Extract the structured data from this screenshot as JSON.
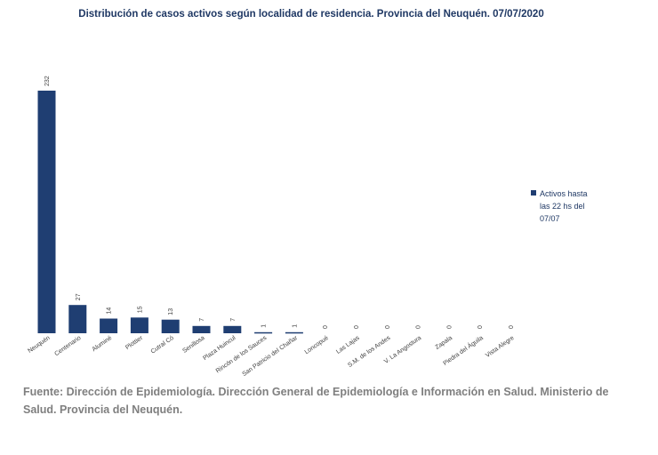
{
  "chart_data": {
    "type": "bar",
    "title": "Distribución de casos activos según localidad de residencia. Provincia del Neuquén. 07/07/2020",
    "categories": [
      "Neuquén",
      "Centenario",
      "Aluminé",
      "Plottier",
      "Cutral Có",
      "Senillosa",
      "Plaza Huincul",
      "Rincón de los Sauces",
      "San Patricio del Chañar",
      "Loncopué",
      "Las Lajas",
      "S.M. de los Andes",
      "V. La Angostura",
      "Zapala",
      "Piedra del Águila",
      "Vista Alegre"
    ],
    "series": [
      {
        "name": "Activos hasta las 22 hs del 07/07",
        "values": [
          232,
          27,
          14,
          15,
          13,
          7,
          7,
          1,
          1,
          0,
          0,
          0,
          0,
          0,
          0,
          0
        ]
      }
    ],
    "xlabel": "",
    "ylabel": "",
    "ylim": [
      0,
      232
    ],
    "grid": false,
    "legend_position": "right",
    "bar_color": "#1f3e72"
  },
  "legend": {
    "label_lines": [
      "Activos hasta",
      "las 22 hs del",
      "07/07"
    ]
  },
  "source": {
    "text": "Fuente: Dirección de Epidemiología. Dirección General de Epidemiología e Información en Salud. Ministerio de Salud. Provincia del Neuquén."
  }
}
